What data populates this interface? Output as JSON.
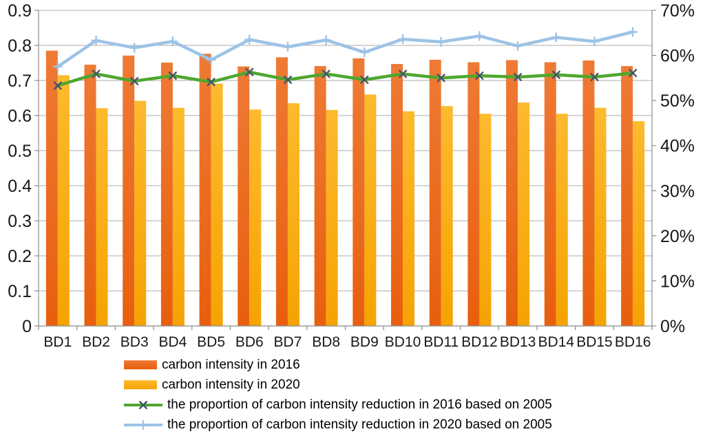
{
  "chart_data": {
    "type": "combo-bar-line",
    "title": "",
    "categories": [
      "BD1",
      "BD2",
      "BD3",
      "BD4",
      "BD5",
      "BD6",
      "BD7",
      "BD8",
      "BD9",
      "BD10",
      "BD11",
      "BD12",
      "BD13",
      "BD14",
      "BD15",
      "BD16"
    ],
    "series": [
      {
        "name": "carbon intensity in 2016",
        "type": "bar",
        "axis": "left",
        "color_top": "#EF7A35",
        "color_bottom": "#E85F0D",
        "values": [
          0.785,
          0.745,
          0.771,
          0.751,
          0.776,
          0.74,
          0.766,
          0.741,
          0.763,
          0.747,
          0.759,
          0.752,
          0.758,
          0.752,
          0.757,
          0.741
        ]
      },
      {
        "name": "carbon intensity in 2020",
        "type": "bar",
        "axis": "left",
        "color_top": "#FCBA2E",
        "color_bottom": "#F6A302",
        "values": [
          0.715,
          0.621,
          0.642,
          0.622,
          0.691,
          0.617,
          0.635,
          0.616,
          0.66,
          0.612,
          0.627,
          0.605,
          0.637,
          0.605,
          0.622,
          0.584
        ]
      },
      {
        "name": "the proportion of carbon intensity reduction in 2016 based on 2005",
        "type": "line",
        "axis": "right",
        "unit": "%",
        "color": "#4EA72E",
        "marker": "x",
        "marker_color": "#44546A",
        "values": [
          53.3,
          55.9,
          54.3,
          55.5,
          54.1,
          56.3,
          54.6,
          55.9,
          54.6,
          55.9,
          55.0,
          55.5,
          55.2,
          55.7,
          55.2,
          56.1
        ]
      },
      {
        "name": "the proportion of carbon intensity reduction in 2020 based on 2005",
        "type": "line",
        "axis": "right",
        "unit": "%",
        "color": "#9DC3E6",
        "marker": "plus",
        "marker_color": "#9DC3E6",
        "values": [
          57.5,
          63.3,
          61.7,
          63.1,
          59.0,
          63.5,
          61.9,
          63.4,
          60.7,
          63.6,
          63.0,
          64.3,
          62.1,
          64.0,
          63.1,
          65.2
        ]
      }
    ],
    "left_axis": {
      "min": 0,
      "max": 0.9,
      "tick_labels": [
        "0.9",
        "0.8",
        "0.7",
        "0.6",
        "0.5",
        "0.4",
        "0.3",
        "0.2",
        "0.1",
        "0"
      ]
    },
    "right_axis": {
      "min": 0,
      "max": 70,
      "tick_labels": [
        "70%",
        "60%",
        "50%",
        "40%",
        "30%",
        "20%",
        "10%",
        "0%"
      ]
    },
    "grid": true,
    "legend_position": "bottom-left",
    "background": "#FFFFFF",
    "gridline_color": "#ABABAB",
    "axis_line_color": "#8C8C8C"
  }
}
